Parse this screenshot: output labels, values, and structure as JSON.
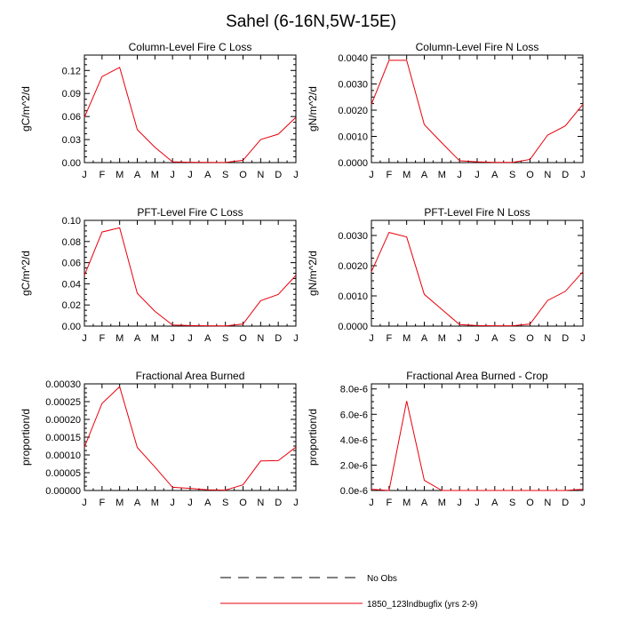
{
  "page_title": "Sahel (6-16N,5W-15E)",
  "legend": {
    "position": "bottom-center",
    "items": [
      {
        "label": "No Obs",
        "style": "dashed",
        "color": "#000000"
      },
      {
        "label": "1850_123lndbugfix (yrs 2-9)",
        "style": "solid",
        "color": "#e8000b"
      }
    ]
  },
  "chart_data": [
    {
      "type": "line",
      "title": "Column-Level Fire C Loss",
      "ylabel": "gC/m^2/d",
      "categories": [
        "J",
        "F",
        "M",
        "A",
        "M",
        "J",
        "J",
        "A",
        "S",
        "O",
        "N",
        "D",
        "J"
      ],
      "ylim": [
        0,
        0.14
      ],
      "yticks": [
        0,
        0.03,
        0.06,
        0.09,
        0.12
      ],
      "ytick_labels": [
        "0.00",
        "0.03",
        "0.06",
        "0.09",
        "0.12"
      ],
      "series": [
        {
          "color": "#e8000b",
          "values": [
            0.059,
            0.112,
            0.124,
            0.043,
            0.02,
            0.001,
            0.0005,
            0.0003,
            0.0002,
            0.003,
            0.03,
            0.037,
            0.059
          ]
        }
      ]
    },
    {
      "type": "line",
      "title": "Column-Level Fire N Loss",
      "ylabel": "gN/m^2/d",
      "categories": [
        "J",
        "F",
        "M",
        "A",
        "M",
        "J",
        "J",
        "A",
        "S",
        "O",
        "N",
        "D",
        "J"
      ],
      "ylim": [
        0,
        0.0041
      ],
      "yticks": [
        0,
        0.001,
        0.002,
        0.003,
        0.004
      ],
      "ytick_labels": [
        "0.0000",
        "0.0010",
        "0.0020",
        "0.0030",
        "0.0040"
      ],
      "series": [
        {
          "color": "#e8000b",
          "values": [
            0.00222,
            0.0039,
            0.0039,
            0.00145,
            0.00075,
            7e-05,
            3e-05,
            1e-05,
            1e-05,
            0.00012,
            0.00105,
            0.0014,
            0.00222
          ]
        }
      ]
    },
    {
      "type": "line",
      "title": "PFT-Level Fire C Loss",
      "ylabel": "gC/m^2/d",
      "categories": [
        "J",
        "F",
        "M",
        "A",
        "M",
        "J",
        "J",
        "A",
        "S",
        "O",
        "N",
        "D",
        "J"
      ],
      "ylim": [
        0,
        0.1
      ],
      "yticks": [
        0,
        0.02,
        0.04,
        0.06,
        0.08,
        0.1
      ],
      "ytick_labels": [
        "0.00",
        "0.02",
        "0.04",
        "0.06",
        "0.08",
        "0.10"
      ],
      "series": [
        {
          "color": "#e8000b",
          "values": [
            0.048,
            0.089,
            0.093,
            0.031,
            0.014,
            0.001,
            0.0005,
            0.0003,
            0.0002,
            0.002,
            0.024,
            0.03,
            0.048
          ]
        }
      ]
    },
    {
      "type": "line",
      "title": "PFT-Level Fire N Loss",
      "ylabel": "gN/m^2/d",
      "categories": [
        "J",
        "F",
        "M",
        "A",
        "M",
        "J",
        "J",
        "A",
        "S",
        "O",
        "N",
        "D",
        "J"
      ],
      "ylim": [
        0,
        0.0035
      ],
      "yticks": [
        0,
        0.001,
        0.002,
        0.003
      ],
      "ytick_labels": [
        "0.0000",
        "0.0010",
        "0.0020",
        "0.0030"
      ],
      "series": [
        {
          "color": "#e8000b",
          "values": [
            0.0018,
            0.0031,
            0.00295,
            0.00105,
            0.00055,
            5e-05,
            2e-05,
            1e-05,
            1e-05,
            7e-05,
            0.00085,
            0.00115,
            0.0018
          ]
        }
      ]
    },
    {
      "type": "line",
      "title": "Fractional Area Burned",
      "ylabel": "proportion/d",
      "categories": [
        "J",
        "F",
        "M",
        "A",
        "M",
        "J",
        "J",
        "A",
        "S",
        "O",
        "N",
        "D",
        "J"
      ],
      "ylim": [
        0,
        0.0003
      ],
      "yticks": [
        0,
        5e-05,
        0.0001,
        0.00015,
        0.0002,
        0.00025,
        0.0003
      ],
      "ytick_labels": [
        "0.00000",
        "0.00005",
        "0.00010",
        "0.00015",
        "0.00020",
        "0.00025",
        "0.00030"
      ],
      "series": [
        {
          "color": "#e8000b",
          "values": [
            0.000122,
            0.000245,
            0.000292,
            0.000121,
            6.6e-05,
            9e-06,
            6e-06,
            2e-06,
            1e-06,
            1.6e-05,
            8.3e-05,
            8.4e-05,
            0.000122
          ]
        }
      ]
    },
    {
      "type": "line",
      "title": "Fractional Area Burned - Crop",
      "ylabel": "proportion/d",
      "categories": [
        "J",
        "F",
        "M",
        "A",
        "M",
        "J",
        "J",
        "A",
        "S",
        "O",
        "N",
        "D",
        "J"
      ],
      "ylim": [
        0,
        8.4e-06
      ],
      "yticks": [
        0,
        2e-06,
        4e-06,
        6e-06,
        8e-06
      ],
      "ytick_labels": [
        "0.0e-6",
        "2.0e-6",
        "4.0e-6",
        "6.0e-6",
        "8.0e-6"
      ],
      "series": [
        {
          "color": "#e8000b",
          "values": [
            1e-07,
            0,
            7.05e-06,
            8e-07,
            0,
            0,
            0,
            0,
            0,
            0,
            0,
            0,
            1e-07
          ]
        }
      ]
    }
  ]
}
